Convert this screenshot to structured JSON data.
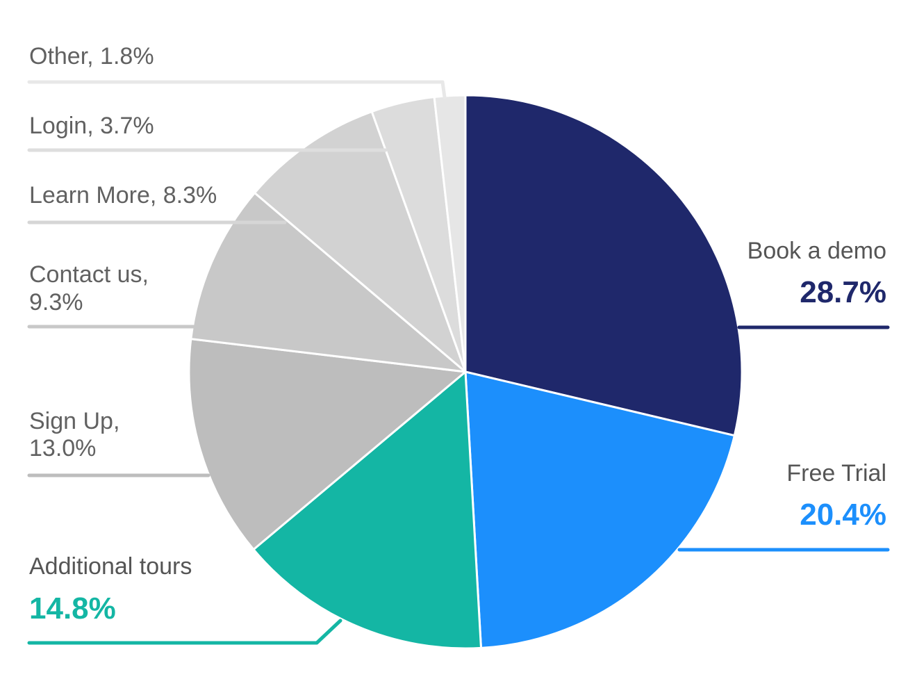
{
  "chart_data": {
    "type": "pie",
    "title": "",
    "start_angle_deg": 0,
    "direction": "clockwise",
    "slices": [
      {
        "label": "Book a demo",
        "value": 28.7,
        "value_text": "28.7%",
        "color": "#1f286b"
      },
      {
        "label": "Free Trial",
        "value": 20.4,
        "value_text": "20.4%",
        "color": "#1c8ffc"
      },
      {
        "label": "Additional tours",
        "value": 14.8,
        "value_text": "14.8%",
        "color": "#14b6a4"
      },
      {
        "label": "Sign Up,",
        "value": 13.0,
        "value_text": "13.0%",
        "color": "#bdbdbd"
      },
      {
        "label": "Contact us,",
        "value": 9.3,
        "value_text": "9.3%",
        "color": "#c8c8c8"
      },
      {
        "label": "Learn More, 8.3%",
        "value": 8.3,
        "value_text": "",
        "color": "#d2d2d2"
      },
      {
        "label": "Login, 3.7%",
        "value": 3.7,
        "value_text": "",
        "color": "#dcdcdc"
      },
      {
        "label": "Other, 1.8%",
        "value": 1.8,
        "value_text": "",
        "color": "#e6e6e6"
      }
    ],
    "leader_colors": {
      "gray_dark": "#bdbdbd",
      "gray_mid": "#c8c8c8",
      "gray_light": "#d6d6d6",
      "gray_lighter": "#dedede",
      "gray_lightest": "#e8e8e8"
    }
  }
}
